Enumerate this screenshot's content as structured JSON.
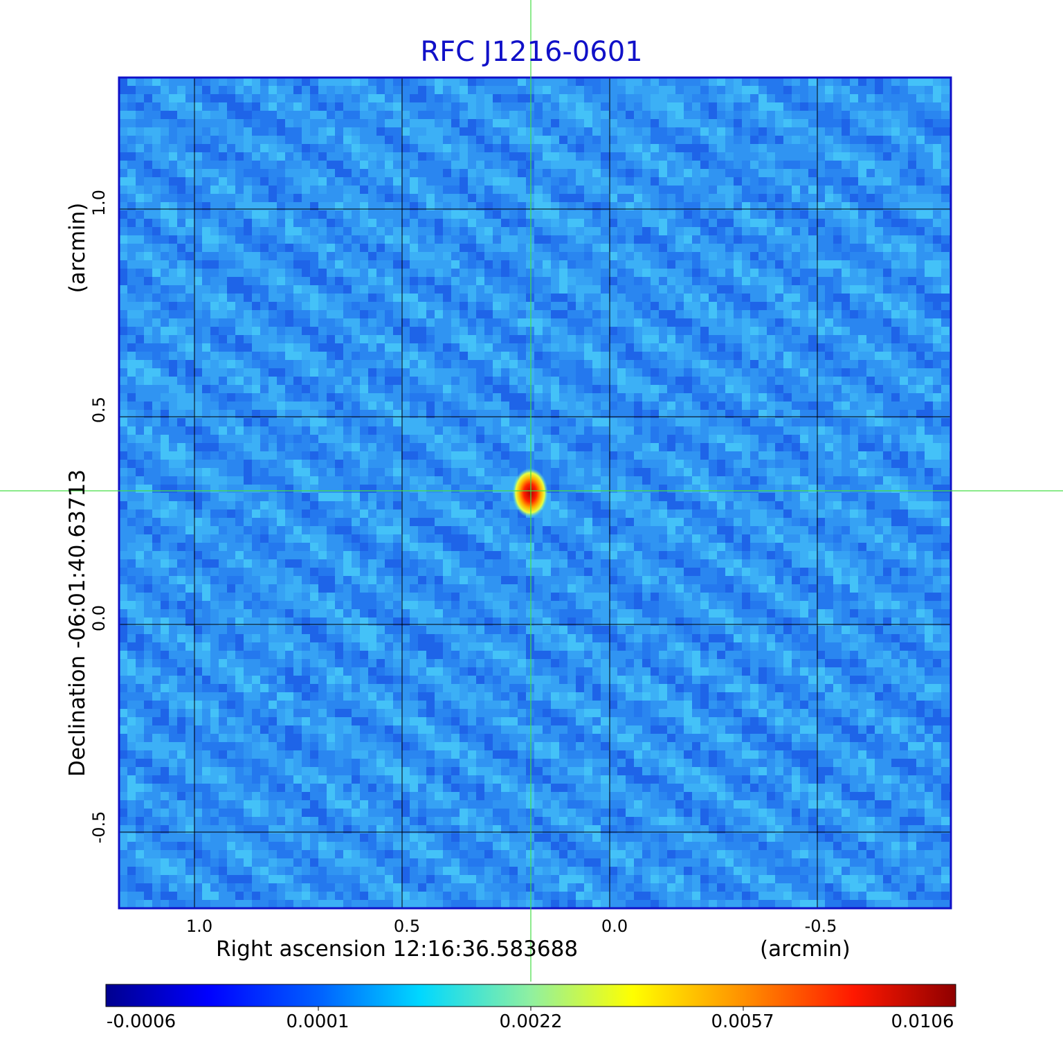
{
  "title": "RFC J1216-0601",
  "x_axis": {
    "label": "Right ascension  12:16:36.583688",
    "unit_label": "(arcmin)",
    "ticks": [
      "1.0",
      "0.5",
      "0.0",
      "-0.5"
    ]
  },
  "y_axis": {
    "label": "Declination  -06:01:40.63713",
    "unit_label": "(arcmin)",
    "ticks": [
      "1.0",
      "0.5",
      "0.0",
      "-0.5"
    ]
  },
  "colorbar": {
    "ticks": [
      "-0.0006",
      "0.0001",
      "0.0022",
      "0.0057",
      "0.0106"
    ]
  },
  "colors": {
    "title": "#1010c8",
    "frame": "#1010c8",
    "crosshair": "#44dd44",
    "background_map": "#2f8fef",
    "source_peak": "#d81414"
  }
}
